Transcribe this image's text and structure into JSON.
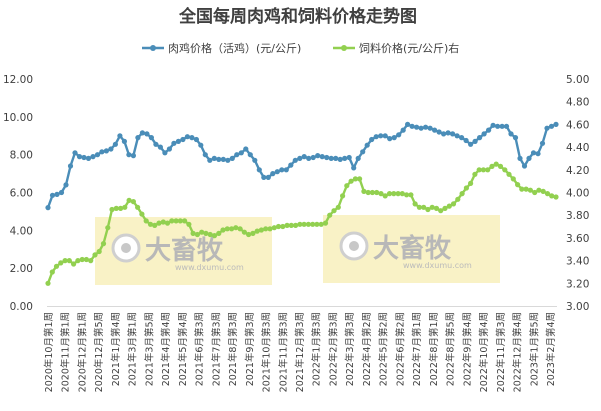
{
  "chart_data": {
    "type": "line",
    "title": "全国每周肉鸡和饲料价格走势图",
    "legend_position": "top",
    "grid": false,
    "y_left": {
      "min": 0,
      "max": 12,
      "ticks": [
        "0.00",
        "2.00",
        "4.00",
        "6.00",
        "8.00",
        "10.00",
        "12.00"
      ]
    },
    "y_right": {
      "min": 3.0,
      "max": 5.0,
      "ticks": [
        "3.00",
        "3.20",
        "3.40",
        "3.60",
        "3.80",
        "4.00",
        "4.20",
        "4.40",
        "4.60",
        "4.80",
        "5.00"
      ]
    },
    "x_labels": [
      "2020年10月第1周",
      "2020年11月第1周",
      "2020年12月第1周",
      "2020年12月第5周",
      "2021年1月第4周",
      "2021年3月第1周",
      "2021年3月第5周",
      "2021年4月第4周",
      "2021年5月第4周",
      "2021年6月第3周",
      "2021年7月第3周",
      "2021年8月第3周",
      "2021年9月第3周",
      "2021年10月第3周",
      "2021年11月第3周",
      "2021年12月第3周",
      "2022年1月第3周",
      "2022年2月第3周",
      "2022年3月第3周",
      "2022年4月第2周",
      "2022年5月第2周",
      "2022年6月第2周",
      "2022年7月第1周",
      "2022年8月第1周",
      "2022年8月第5周",
      "2022年9月第4周",
      "2022年10月第4周",
      "2022年11月第3周",
      "2022年12月第4周",
      "2023年1月第5周",
      "2023年2月第4周"
    ],
    "series": [
      {
        "name": "肉鸡价格（活鸡）(元/公斤)",
        "axis": "left",
        "color": "#4a8db8",
        "values": [
          5.2,
          5.85,
          5.9,
          6.0,
          6.4,
          7.4,
          8.1,
          7.9,
          7.85,
          7.8,
          7.9,
          8.0,
          8.15,
          8.2,
          8.3,
          8.55,
          9.0,
          8.7,
          8.0,
          7.95,
          8.9,
          9.15,
          9.1,
          8.9,
          8.55,
          8.4,
          8.1,
          8.3,
          8.6,
          8.7,
          8.8,
          8.95,
          8.9,
          8.8,
          8.5,
          8.0,
          7.7,
          7.8,
          7.75,
          7.75,
          7.7,
          7.8,
          8.0,
          8.1,
          8.3,
          8.0,
          7.7,
          7.2,
          6.8,
          6.8,
          7.0,
          7.1,
          7.2,
          7.2,
          7.45,
          7.7,
          7.8,
          7.9,
          7.8,
          7.85,
          7.95,
          7.9,
          7.85,
          7.8,
          7.8,
          7.75,
          7.8,
          7.85,
          7.3,
          7.8,
          8.15,
          8.5,
          8.8,
          8.95,
          9.0,
          9.0,
          8.85,
          8.9,
          9.05,
          9.3,
          9.6,
          9.5,
          9.45,
          9.4,
          9.45,
          9.4,
          9.3,
          9.2,
          9.1,
          9.15,
          9.1,
          9.0,
          8.9,
          8.75,
          8.55,
          8.7,
          8.9,
          9.1,
          9.3,
          9.55,
          9.5,
          9.5,
          9.5,
          9.1,
          8.9,
          7.8,
          7.4,
          7.8,
          8.1,
          8.05,
          8.6,
          9.4,
          9.5,
          9.6
        ]
      },
      {
        "name": "饲料价格(元/公斤)右",
        "axis": "right",
        "color": "#92d050",
        "values": [
          3.2,
          3.3,
          3.35,
          3.38,
          3.4,
          3.4,
          3.37,
          3.4,
          3.41,
          3.41,
          3.4,
          3.45,
          3.48,
          3.55,
          3.69,
          3.85,
          3.86,
          3.86,
          3.87,
          3.93,
          3.92,
          3.87,
          3.81,
          3.75,
          3.72,
          3.71,
          3.73,
          3.74,
          3.73,
          3.75,
          3.75,
          3.75,
          3.75,
          3.72,
          3.64,
          3.63,
          3.65,
          3.64,
          3.63,
          3.62,
          3.64,
          3.67,
          3.68,
          3.68,
          3.69,
          3.68,
          3.65,
          3.63,
          3.64,
          3.66,
          3.67,
          3.68,
          3.68,
          3.69,
          3.7,
          3.7,
          3.71,
          3.71,
          3.71,
          3.72,
          3.72,
          3.72,
          3.72,
          3.72,
          3.72,
          3.73,
          3.8,
          3.84,
          3.87,
          3.97,
          4.06,
          4.1,
          4.12,
          4.12,
          4.01,
          4.0,
          4.0,
          4.0,
          3.99,
          3.97,
          3.99,
          3.99,
          3.99,
          3.99,
          3.98,
          3.98,
          3.9,
          3.87,
          3.87,
          3.85,
          3.87,
          3.86,
          3.84,
          3.86,
          3.88,
          3.9,
          3.94,
          3.99,
          4.04,
          4.08,
          4.16,
          4.2,
          4.2,
          4.2,
          4.23,
          4.25,
          4.23,
          4.2,
          4.16,
          4.12,
          4.07,
          4.03,
          4.03,
          4.02,
          4.0,
          4.02,
          4.01,
          3.99,
          3.97,
          3.96
        ]
      }
    ]
  },
  "watermark": {
    "brand_text": "大畜牧",
    "url_text": "www.dxumu.com"
  }
}
